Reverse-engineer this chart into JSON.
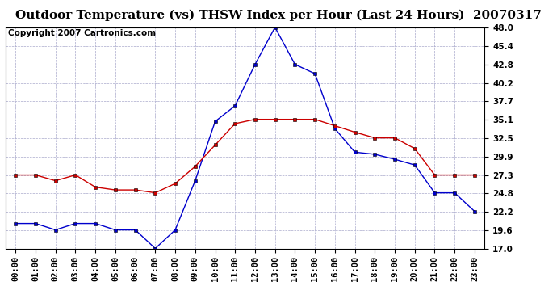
{
  "title": "Outdoor Temperature (vs) THSW Index per Hour (Last 24 Hours)  20070317",
  "copyright": "Copyright 2007 Cartronics.com",
  "hours": [
    "00:00",
    "01:00",
    "02:00",
    "03:00",
    "04:00",
    "05:00",
    "06:00",
    "07:00",
    "08:00",
    "09:00",
    "10:00",
    "11:00",
    "12:00",
    "13:00",
    "14:00",
    "15:00",
    "16:00",
    "17:00",
    "18:00",
    "19:00",
    "20:00",
    "21:00",
    "22:00",
    "23:00"
  ],
  "temp_red": [
    27.3,
    27.3,
    26.5,
    27.3,
    25.6,
    25.2,
    25.2,
    24.8,
    26.1,
    28.5,
    31.5,
    34.5,
    35.1,
    35.1,
    35.1,
    35.1,
    34.2,
    33.3,
    32.5,
    32.5,
    31.0,
    27.3,
    27.3,
    27.3
  ],
  "thsw_blue": [
    20.5,
    20.5,
    19.6,
    20.5,
    20.5,
    19.6,
    19.6,
    17.0,
    19.6,
    26.5,
    34.8,
    37.0,
    42.8,
    48.0,
    42.8,
    41.5,
    33.8,
    30.5,
    30.2,
    29.5,
    28.7,
    24.8,
    24.8,
    22.2
  ],
  "y_ticks": [
    17.0,
    19.6,
    22.2,
    24.8,
    27.3,
    29.9,
    32.5,
    35.1,
    37.7,
    40.2,
    42.8,
    45.4,
    48.0
  ],
  "ylim": [
    17.0,
    48.0
  ],
  "bg_color": "#ffffff",
  "grid_color": "#aaaacc",
  "red_color": "#cc0000",
  "blue_color": "#0000cc",
  "title_fontsize": 11,
  "copyright_fontsize": 7.5,
  "tick_fontsize": 7.5,
  "marker_size": 3
}
